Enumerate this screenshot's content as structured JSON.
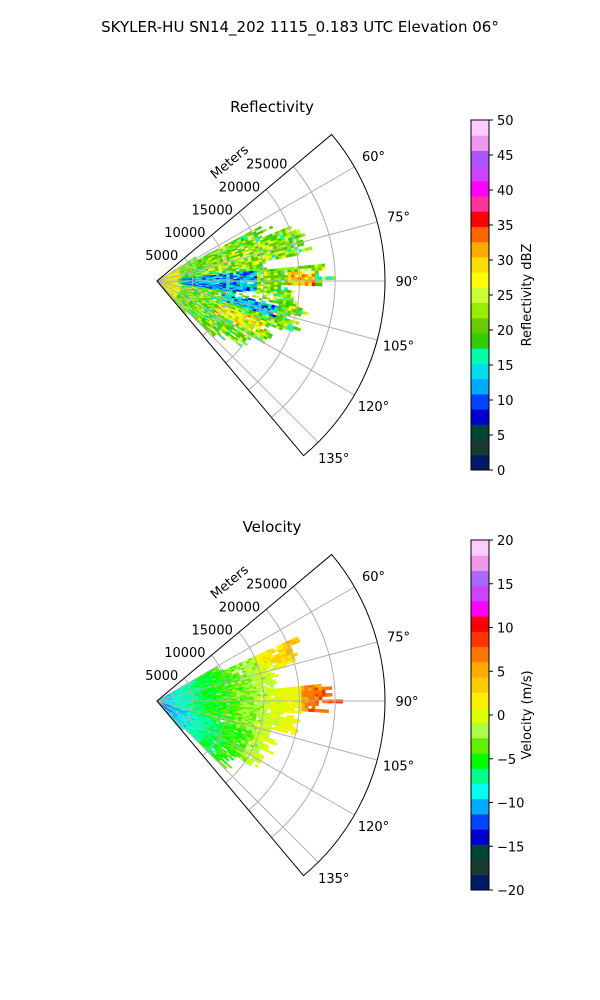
{
  "title": "SKYLER-HU  SN14_202  1115_0.183 UTC Elevation 06°",
  "chart_data": [
    {
      "type": "heatmap",
      "projection": "polar-sector",
      "title": "Reflectivity",
      "range_axis_label": "Meters",
      "range_ticks": [
        "5000",
        "10000",
        "15000",
        "20000",
        "25000"
      ],
      "range_tick_values": [
        5000,
        10000,
        15000,
        20000,
        25000
      ],
      "range_max": 32000,
      "azimuth_ticks": [
        "60°",
        "75°",
        "90°",
        "105°",
        "120°",
        "135°"
      ],
      "azimuth_tick_values": [
        60,
        75,
        90,
        105,
        120,
        135
      ],
      "azimuth_range": [
        50,
        140
      ],
      "grid": true,
      "colorbar": {
        "label": "Reflectivity dBZ",
        "ticks": [
          "0",
          "5",
          "10",
          "15",
          "20",
          "25",
          "30",
          "35",
          "40",
          "45",
          "50"
        ],
        "range": [
          0,
          50
        ],
        "colors": [
          "#001a66",
          "#1a3a33",
          "#004433",
          "#0000cc",
          "#0044ff",
          "#00aaff",
          "#00ddee",
          "#00ffaa",
          "#33cc00",
          "#66cc00",
          "#99ee00",
          "#ccff33",
          "#ffff00",
          "#ffdd00",
          "#ffaa00",
          "#ff6600",
          "#ff0000",
          "#ff3399",
          "#ff00ff",
          "#cc44ff",
          "#aa55ff",
          "#ee99ee",
          "#ffccff"
        ]
      },
      "field_summary": {
        "dominant_range": [
          15,
          30
        ],
        "max_cells": [
          35,
          38
        ],
        "min_cells": [
          5,
          15
        ],
        "data_extent_m": 28000
      }
    },
    {
      "type": "heatmap",
      "projection": "polar-sector",
      "title": "Velocity",
      "range_axis_label": "Meters",
      "range_ticks": [
        "5000",
        "10000",
        "15000",
        "20000",
        "25000"
      ],
      "range_tick_values": [
        5000,
        10000,
        15000,
        20000,
        25000
      ],
      "range_max": 32000,
      "azimuth_ticks": [
        "60°",
        "75°",
        "90°",
        "105°",
        "120°",
        "135°"
      ],
      "azimuth_tick_values": [
        60,
        75,
        90,
        105,
        120,
        135
      ],
      "azimuth_range": [
        50,
        140
      ],
      "grid": true,
      "colorbar": {
        "label": "Velocity (m/s)",
        "ticks": [
          "−20",
          "−15",
          "−10",
          "−5",
          "0",
          "5",
          "10",
          "15",
          "20"
        ],
        "range": [
          -20,
          20
        ],
        "colors": [
          "#001a66",
          "#1a3a33",
          "#004433",
          "#0000cc",
          "#0044ff",
          "#00aaff",
          "#00ffee",
          "#00ff88",
          "#00ff00",
          "#66ee00",
          "#aaff44",
          "#ddff00",
          "#ffee00",
          "#ffcc00",
          "#ffaa00",
          "#ff7700",
          "#ff3300",
          "#ff0000",
          "#ff00ff",
          "#cc44ff",
          "#aa66ff",
          "#ee99ee",
          "#ffccff"
        ]
      },
      "field_summary": {
        "near_radar": -10,
        "mid_range": -4,
        "far_range": 2,
        "far_edge_90deg": 9,
        "data_extent_m": 27000
      }
    }
  ]
}
